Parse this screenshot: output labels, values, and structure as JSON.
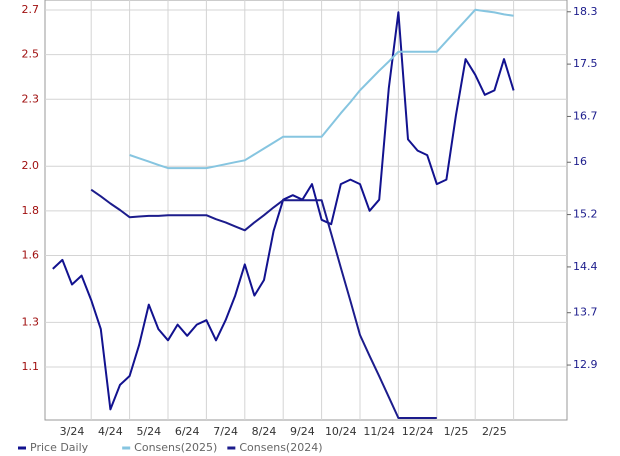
{
  "chart_data": {
    "type": "line",
    "categories": [
      null,
      null,
      "3/24",
      null,
      null,
      null,
      "4/24",
      null,
      null,
      null,
      "5/24",
      null,
      null,
      null,
      "6/24",
      null,
      null,
      null,
      "7/24",
      null,
      null,
      null,
      "8/24",
      null,
      null,
      null,
      "9/24",
      null,
      null,
      null,
      "10/24",
      null,
      null,
      null,
      "11/24",
      null,
      null,
      null,
      "12/24",
      null,
      null,
      null,
      "1/25",
      null,
      null,
      null,
      "2/25",
      null,
      null,
      null
    ],
    "series": [
      {
        "name": "Price Daily",
        "color": "#12128f",
        "axis": "y",
        "values": [
          1.54,
          1.58,
          1.47,
          1.51,
          1.4,
          1.27,
          0.91,
          1.02,
          1.06,
          1.2,
          1.38,
          1.27,
          1.22,
          1.29,
          1.24,
          1.29,
          1.31,
          1.22,
          1.31,
          1.42,
          1.56,
          1.42,
          1.49,
          1.71,
          1.85,
          1.87,
          1.85,
          1.92,
          1.76,
          1.74,
          1.92,
          1.94,
          1.92,
          1.8,
          1.85,
          2.35,
          2.69,
          2.12,
          2.07,
          2.05,
          1.92,
          1.94,
          2.23,
          2.48,
          2.41,
          2.32,
          2.34,
          2.48,
          2.34,
          null
        ]
      },
      {
        "name": "Consens(2025)",
        "color": "#86c5e0",
        "axis": "y2",
        "values": [
          null,
          null,
          null,
          null,
          null,
          null,
          null,
          null,
          16.11,
          16.06,
          16.01,
          15.96,
          15.91,
          15.91,
          15.91,
          15.91,
          15.91,
          15.94,
          15.97,
          16.0,
          16.03,
          16.12,
          16.21,
          16.3,
          16.39,
          16.39,
          16.39,
          16.39,
          16.39,
          16.57,
          16.75,
          16.92,
          17.1,
          17.25,
          17.4,
          17.54,
          17.69,
          17.69,
          17.69,
          17.69,
          17.69,
          17.85,
          18.01,
          18.17,
          18.33,
          18.31,
          18.29,
          18.26,
          18.24,
          null
        ]
      },
      {
        "name": "Consens(2024)",
        "color": "#1c1c8c",
        "axis": "y2",
        "values": [
          null,
          null,
          null,
          null,
          15.58,
          15.48,
          15.37,
          15.27,
          15.16,
          15.17,
          15.18,
          15.18,
          15.19,
          15.19,
          15.19,
          15.19,
          15.19,
          15.13,
          15.08,
          15.02,
          14.96,
          15.08,
          15.19,
          15.31,
          15.42,
          15.42,
          15.42,
          15.42,
          15.42,
          14.91,
          14.39,
          13.88,
          13.36,
          13.04,
          12.73,
          12.41,
          12.09,
          12.09,
          12.09,
          12.09,
          12.09,
          null,
          null,
          null,
          null,
          null,
          null,
          null,
          null,
          null
        ]
      }
    ],
    "ylim": [
      0.8626,
      2.745
    ],
    "yticks": [
      1.1,
      1.3,
      1.6,
      1.8,
      {
        "value": 2,
        "label": "2.0"
      },
      2.3,
      2.5,
      2.7
    ],
    "y2lim": [
      12.06,
      18.48
    ],
    "y2ticks": [
      12.9,
      13.7,
      14.4,
      15.2,
      16.0,
      16.7,
      17.5,
      18.3
    ],
    "grid": true
  }
}
